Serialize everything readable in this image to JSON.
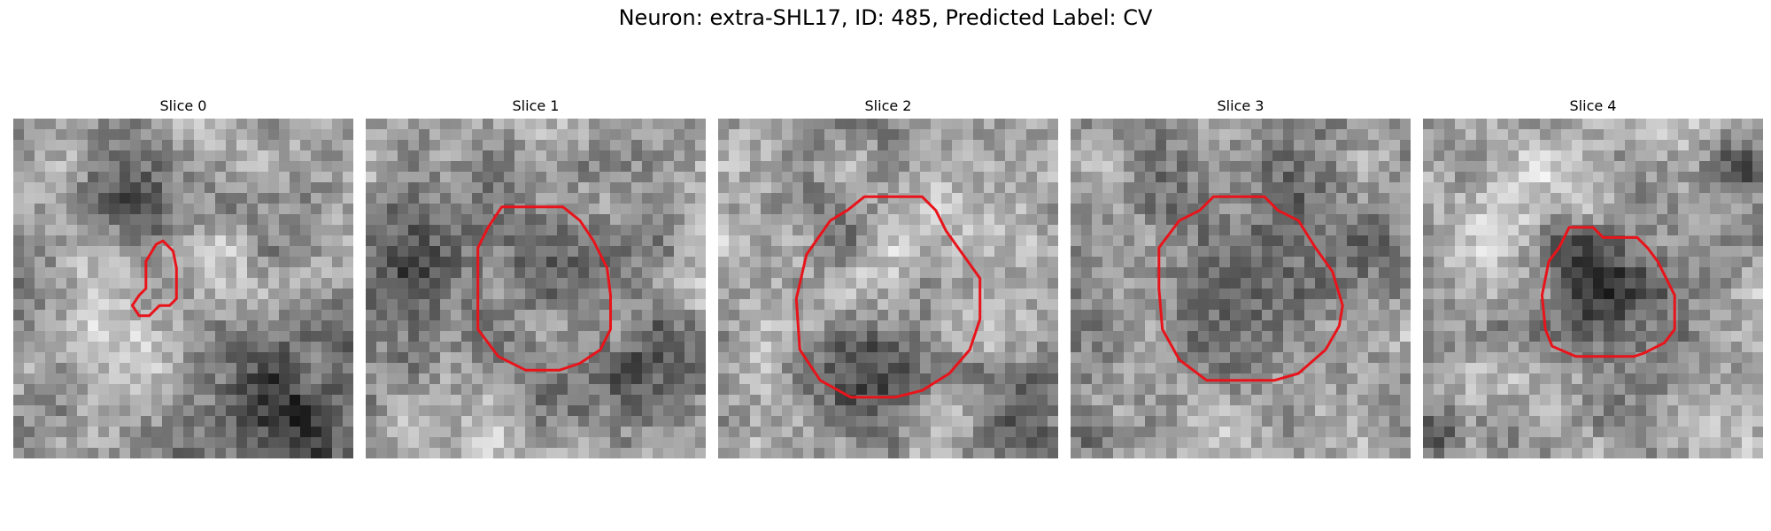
{
  "figure": {
    "title": "Neuron: extra-SHL17, ID: 485, Predicted Label: CV"
  },
  "contour_color": "#e8141b",
  "slices": [
    {
      "title": "Slice 0",
      "seed": 11,
      "blobs": [
        [
          0.38,
          0.26,
          0.13,
          0.85
        ],
        [
          0.78,
          0.86,
          0.22,
          0.95
        ],
        [
          0.9,
          0.55,
          0.12,
          0.35
        ],
        [
          0.3,
          0.7,
          0.18,
          -0.35
        ]
      ],
      "contour": [
        [
          0.44,
          0.36
        ],
        [
          0.47,
          0.39
        ],
        [
          0.48,
          0.44
        ],
        [
          0.48,
          0.53
        ],
        [
          0.46,
          0.55
        ],
        [
          0.43,
          0.55
        ],
        [
          0.4,
          0.58
        ],
        [
          0.37,
          0.58
        ],
        [
          0.35,
          0.55
        ],
        [
          0.37,
          0.52
        ],
        [
          0.39,
          0.5
        ],
        [
          0.39,
          0.42
        ],
        [
          0.42,
          0.37
        ]
      ]
    },
    {
      "title": "Slice 1",
      "seed": 23,
      "blobs": [
        [
          0.5,
          0.45,
          0.26,
          0.75
        ],
        [
          0.5,
          0.55,
          0.15,
          -0.45
        ],
        [
          0.85,
          0.75,
          0.15,
          0.6
        ],
        [
          0.12,
          0.45,
          0.15,
          0.4
        ]
      ],
      "contour": [
        [
          0.4,
          0.26
        ],
        [
          0.58,
          0.26
        ],
        [
          0.63,
          0.3
        ],
        [
          0.67,
          0.36
        ],
        [
          0.71,
          0.44
        ],
        [
          0.72,
          0.52
        ],
        [
          0.72,
          0.62
        ],
        [
          0.69,
          0.68
        ],
        [
          0.63,
          0.72
        ],
        [
          0.57,
          0.74
        ],
        [
          0.47,
          0.74
        ],
        [
          0.39,
          0.7
        ],
        [
          0.33,
          0.62
        ],
        [
          0.33,
          0.52
        ],
        [
          0.33,
          0.38
        ],
        [
          0.36,
          0.32
        ]
      ]
    },
    {
      "title": "Slice 2",
      "seed": 37,
      "blobs": [
        [
          0.45,
          0.72,
          0.18,
          0.8
        ],
        [
          0.5,
          0.45,
          0.25,
          -0.35
        ],
        [
          0.33,
          0.35,
          0.12,
          0.5
        ],
        [
          0.9,
          0.88,
          0.14,
          0.8
        ]
      ],
      "contour": [
        [
          0.43,
          0.23
        ],
        [
          0.6,
          0.23
        ],
        [
          0.64,
          0.27
        ],
        [
          0.67,
          0.33
        ],
        [
          0.72,
          0.4
        ],
        [
          0.77,
          0.47
        ],
        [
          0.77,
          0.59
        ],
        [
          0.74,
          0.68
        ],
        [
          0.68,
          0.75
        ],
        [
          0.6,
          0.8
        ],
        [
          0.52,
          0.82
        ],
        [
          0.39,
          0.82
        ],
        [
          0.3,
          0.77
        ],
        [
          0.24,
          0.68
        ],
        [
          0.23,
          0.53
        ],
        [
          0.26,
          0.4
        ],
        [
          0.33,
          0.3
        ],
        [
          0.38,
          0.27
        ]
      ]
    },
    {
      "title": "Slice 3",
      "seed": 53,
      "blobs": [
        [
          0.5,
          0.45,
          0.28,
          0.7
        ],
        [
          0.5,
          0.48,
          0.18,
          -0.45
        ],
        [
          0.05,
          0.93,
          0.08,
          0.7
        ],
        [
          0.92,
          0.3,
          0.12,
          0.3
        ]
      ],
      "contour": [
        [
          0.42,
          0.23
        ],
        [
          0.57,
          0.23
        ],
        [
          0.61,
          0.27
        ],
        [
          0.67,
          0.3
        ],
        [
          0.72,
          0.38
        ],
        [
          0.77,
          0.45
        ],
        [
          0.8,
          0.55
        ],
        [
          0.79,
          0.61
        ],
        [
          0.75,
          0.68
        ],
        [
          0.67,
          0.75
        ],
        [
          0.6,
          0.77
        ],
        [
          0.4,
          0.77
        ],
        [
          0.32,
          0.71
        ],
        [
          0.27,
          0.62
        ],
        [
          0.26,
          0.5
        ],
        [
          0.26,
          0.38
        ],
        [
          0.32,
          0.3
        ],
        [
          0.38,
          0.27
        ]
      ]
    },
    {
      "title": "Slice 4",
      "seed": 71,
      "blobs": [
        [
          0.52,
          0.52,
          0.2,
          0.85
        ],
        [
          0.93,
          0.15,
          0.1,
          0.75
        ],
        [
          0.03,
          0.92,
          0.07,
          0.75
        ],
        [
          0.28,
          0.2,
          0.14,
          -0.35
        ]
      ],
      "contour": [
        [
          0.43,
          0.32
        ],
        [
          0.5,
          0.32
        ],
        [
          0.53,
          0.35
        ],
        [
          0.63,
          0.35
        ],
        [
          0.66,
          0.38
        ],
        [
          0.69,
          0.42
        ],
        [
          0.74,
          0.52
        ],
        [
          0.74,
          0.62
        ],
        [
          0.71,
          0.66
        ],
        [
          0.65,
          0.69
        ],
        [
          0.62,
          0.7
        ],
        [
          0.45,
          0.7
        ],
        [
          0.38,
          0.67
        ],
        [
          0.36,
          0.62
        ],
        [
          0.35,
          0.52
        ],
        [
          0.37,
          0.42
        ],
        [
          0.4,
          0.38
        ]
      ]
    }
  ]
}
